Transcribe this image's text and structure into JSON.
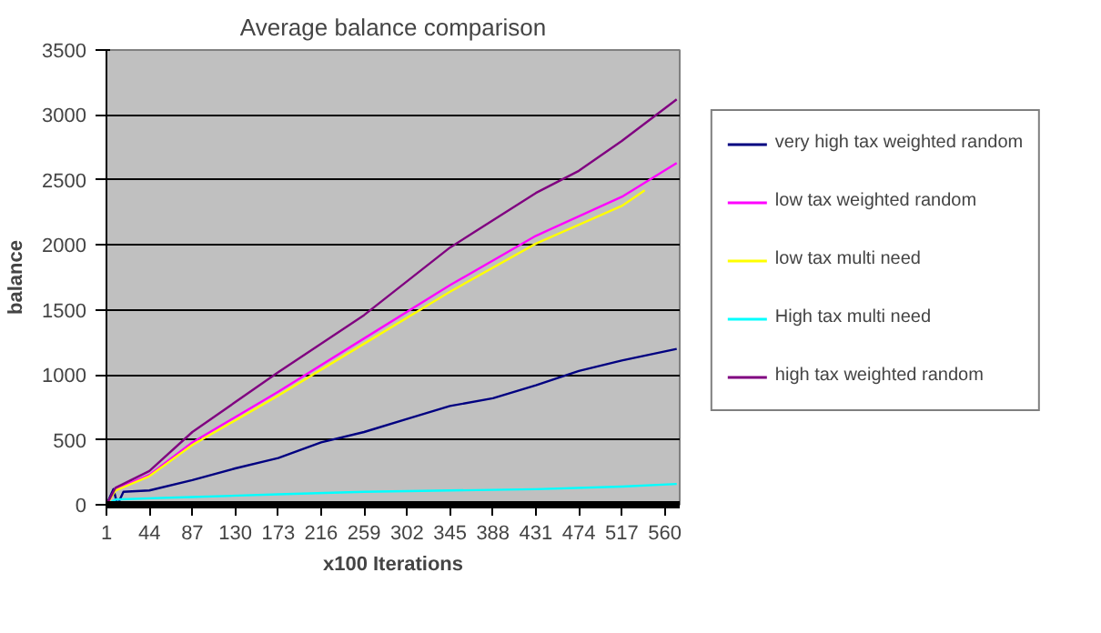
{
  "chart_data": {
    "type": "line",
    "title": "Average balance comparison",
    "xlabel": "x100 Iterations",
    "ylabel": "balance",
    "xlim": [
      1,
      575
    ],
    "xticks": [
      1,
      44,
      87,
      130,
      173,
      216,
      259,
      302,
      345,
      388,
      431,
      474,
      517,
      560
    ],
    "ylim": [
      0,
      3500
    ],
    "yticks": [
      0,
      500,
      1000,
      1500,
      2000,
      2500,
      3000,
      3500
    ],
    "grid": "y",
    "legend": "right",
    "series": [
      {
        "name": "very high tax weighted random",
        "color": "#000080",
        "x": [
          1,
          8,
          12,
          18,
          44,
          87,
          130,
          173,
          216,
          259,
          302,
          345,
          388,
          431,
          474,
          517,
          572
        ],
        "values": [
          0,
          120,
          0,
          100,
          110,
          190,
          280,
          360,
          480,
          560,
          660,
          760,
          820,
          920,
          1030,
          1110,
          1200
        ]
      },
      {
        "name": "low tax weighted random",
        "color": "#ff00ff",
        "x": [
          1,
          10,
          44,
          87,
          173,
          259,
          345,
          431,
          517,
          572
        ],
        "values": [
          0,
          120,
          230,
          480,
          870,
          1280,
          1690,
          2070,
          2370,
          2630
        ]
      },
      {
        "name": "low tax multi need",
        "color": "#ffff00",
        "x": [
          1,
          10,
          44,
          87,
          173,
          259,
          345,
          431,
          517,
          540
        ],
        "values": [
          0,
          110,
          220,
          460,
          840,
          1240,
          1640,
          2010,
          2300,
          2420
        ]
      },
      {
        "name": "High tax multi need",
        "color": "#00ffff",
        "x": [
          1,
          10,
          44,
          87,
          173,
          259,
          345,
          431,
          517,
          572
        ],
        "values": [
          0,
          40,
          50,
          60,
          80,
          100,
          110,
          120,
          140,
          160
        ]
      },
      {
        "name": "high tax weighted random",
        "color": "#800080",
        "x": [
          1,
          10,
          44,
          87,
          173,
          259,
          345,
          431,
          474,
          517,
          572
        ],
        "values": [
          0,
          130,
          260,
          560,
          1020,
          1460,
          1980,
          2400,
          2570,
          2800,
          3120
        ]
      }
    ]
  }
}
